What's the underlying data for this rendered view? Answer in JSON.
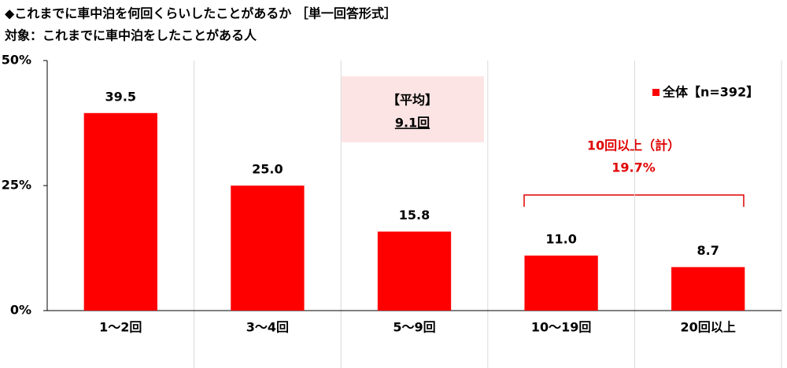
{
  "chart_data": {
    "type": "bar",
    "title": "◆これまでに車中泊を何回くらいしたことがあるか ［単一回答形式］",
    "subtitle": "対象：これまでに車中泊をしたことがある人",
    "categories": [
      "1〜2回",
      "3〜4回",
      "5〜9回",
      "10〜19回",
      "20回以上"
    ],
    "series": [
      {
        "name": "全体【n=392】",
        "color": "#ff0000",
        "values": [
          39.5,
          25.0,
          15.8,
          11.0,
          8.7
        ],
        "value_labels": [
          "39.5",
          "25.0",
          "15.8",
          "11.0",
          "8.7"
        ]
      }
    ],
    "ylim": [
      0,
      50
    ],
    "yticks": [
      {
        "value": 0,
        "label": "0%"
      },
      {
        "value": 25,
        "label": "25%"
      },
      {
        "value": 50,
        "label": "50%"
      }
    ],
    "legend": "upper right",
    "annotations": {
      "mean_label": "【平均】",
      "mean_value": "9.1回",
      "group_label": "10回以上（計）",
      "group_value": "19.7%"
    }
  }
}
